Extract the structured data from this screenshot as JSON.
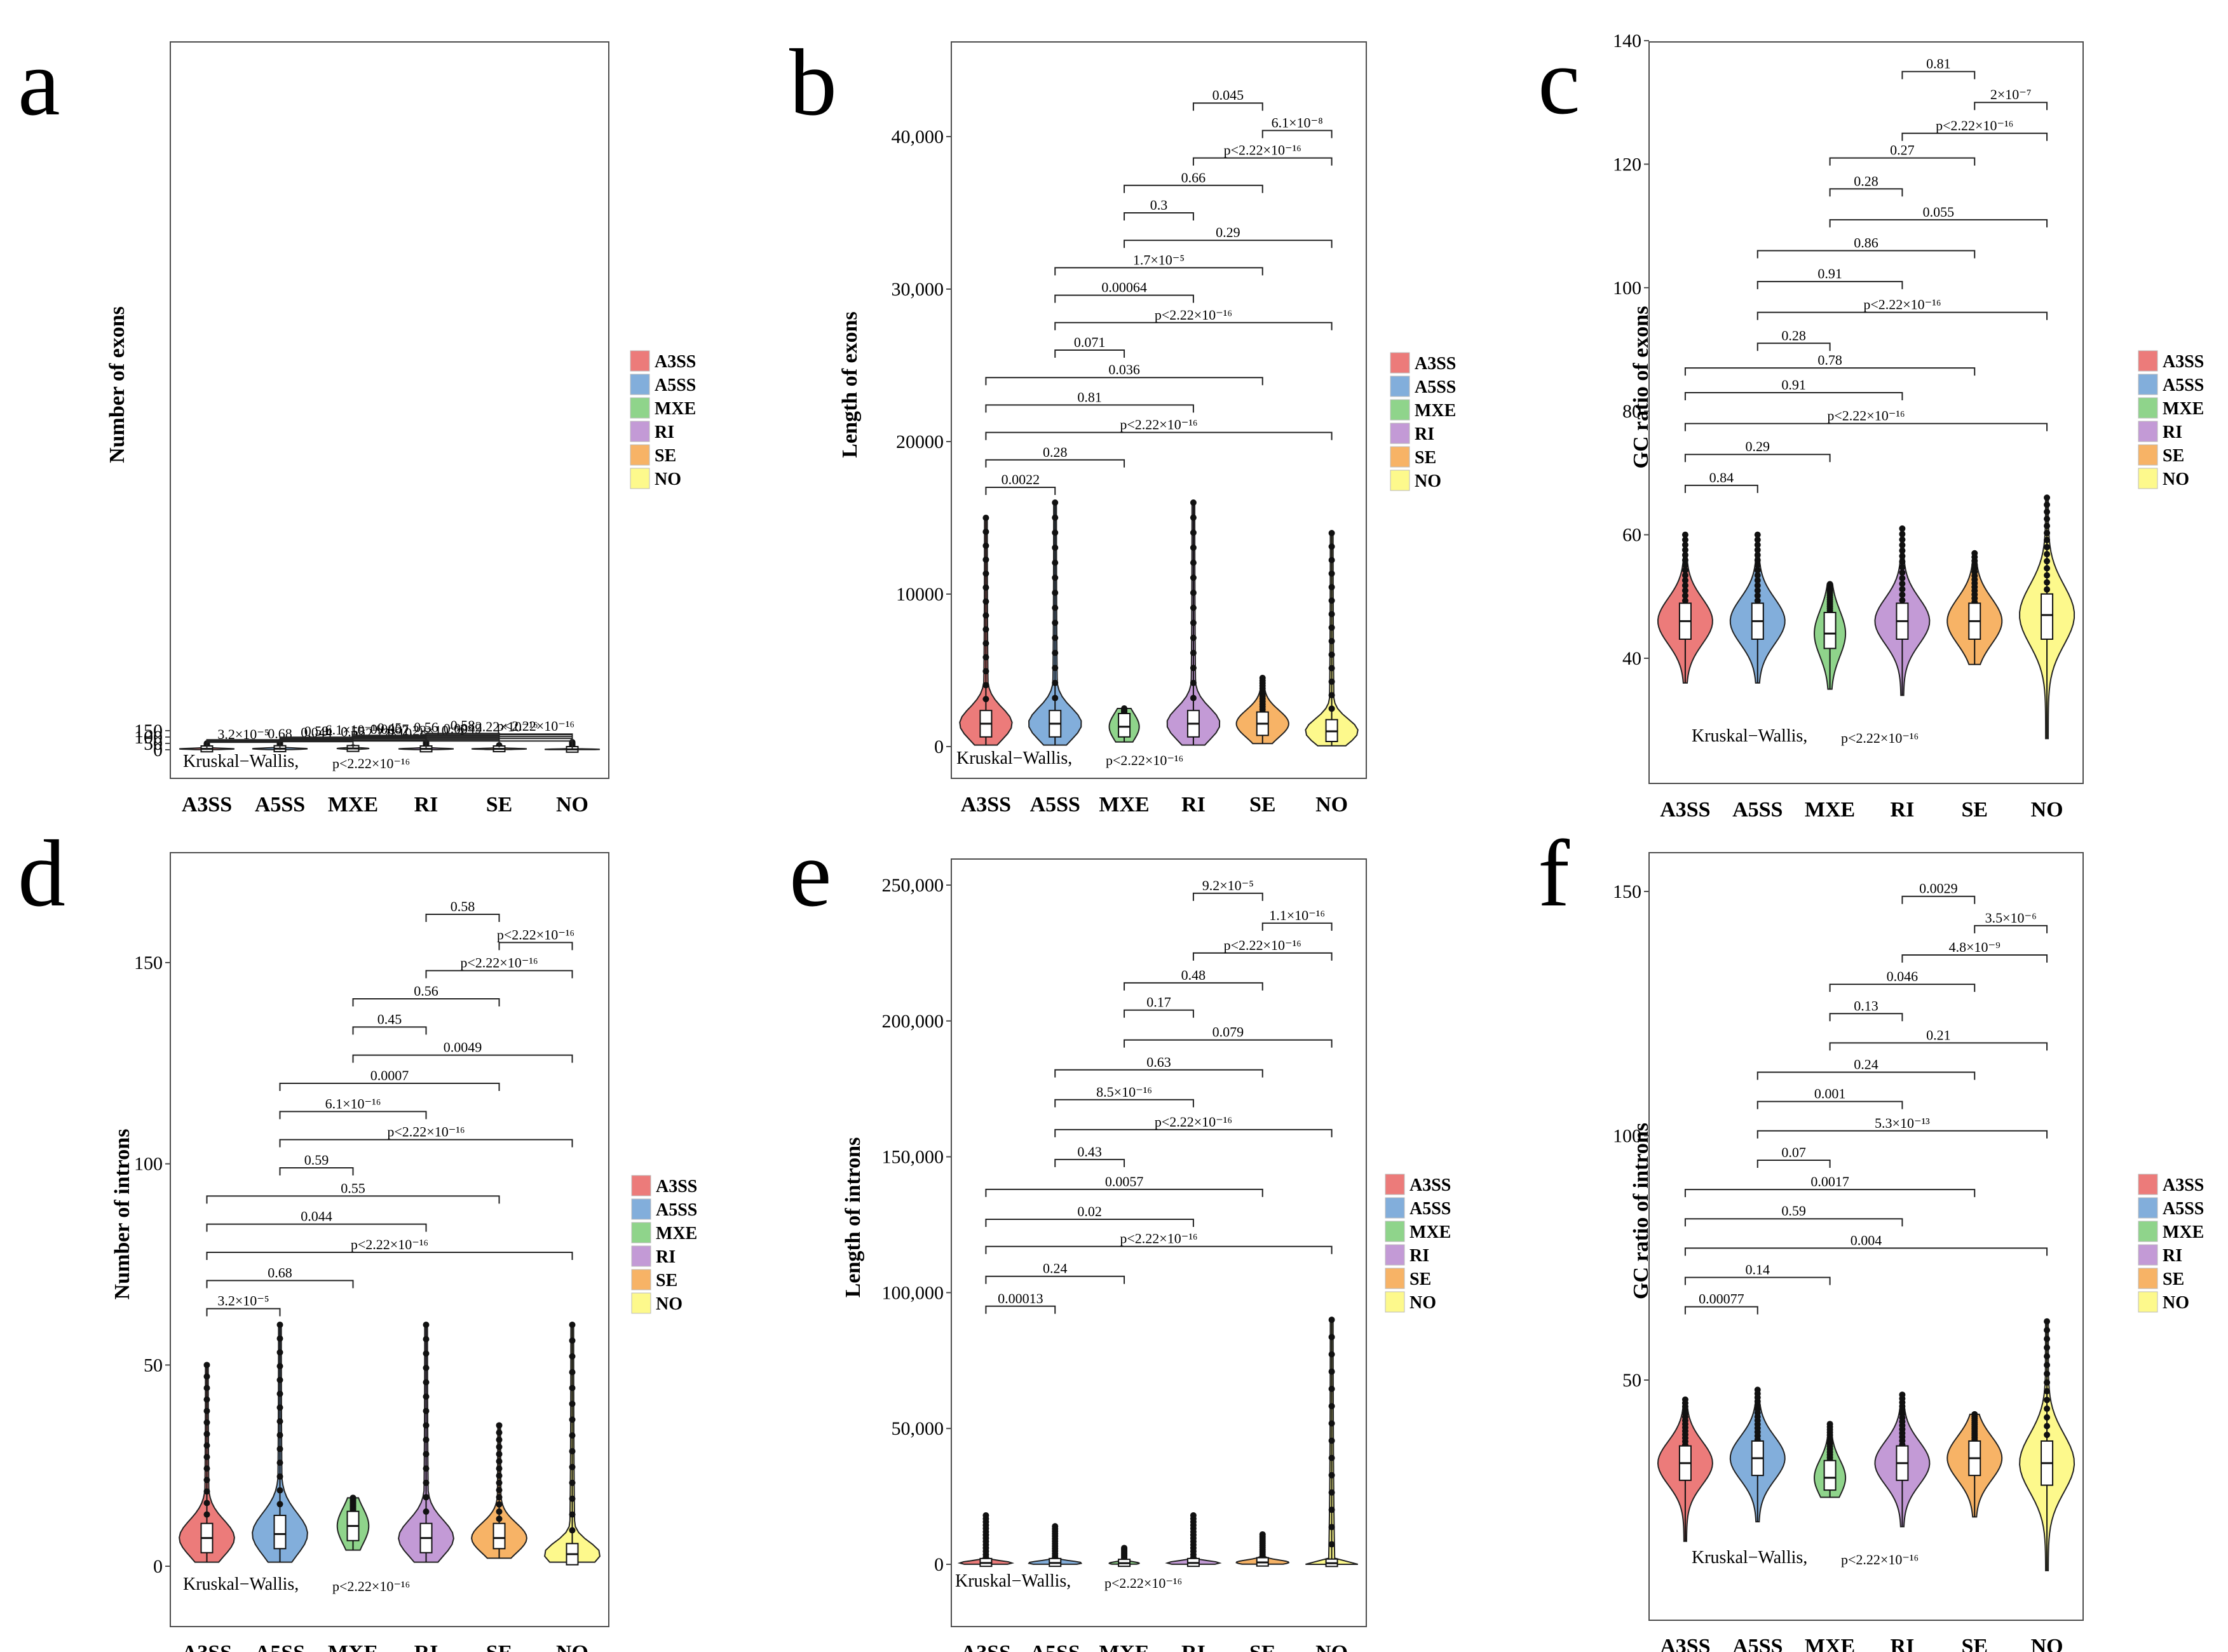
{
  "legend_colors": {
    "A3SS": "#ec7b7a",
    "A5SS": "#82aedb",
    "MXE": "#8fd48b",
    "RI": "#c39ad6",
    "SE": "#f7b366",
    "NO": "#fdf98c"
  },
  "chart_data": [
    {
      "type": "violin",
      "panel": "a",
      "ylabel": "Number of exons",
      "ylim": [
        0,
        160
      ],
      "yticks": [
        "0",
        "50",
        "100",
        "150"
      ],
      "ytick_values": [
        0,
        50,
        100,
        150
      ],
      "categories": [
        "A3SS",
        "A5SS",
        "MXE",
        "RI",
        "SE",
        "NO"
      ],
      "series": [
        {
          "name": "A3SS",
          "median": 7,
          "q1": 4,
          "q3": 10,
          "min": 1,
          "max": 50
        },
        {
          "name": "A5SS",
          "median": 8,
          "q1": 5,
          "q3": 12,
          "min": 1,
          "max": 60
        },
        {
          "name": "MXE",
          "median": 10,
          "q1": 7,
          "q3": 13,
          "min": 4,
          "max": 18
        },
        {
          "name": "RI",
          "median": 7,
          "q1": 4,
          "q3": 10,
          "min": 1,
          "max": 60
        },
        {
          "name": "SE",
          "median": 7,
          "q1": 5,
          "q3": 10,
          "min": 2,
          "max": 35
        },
        {
          "name": "NO",
          "median": 3,
          "q1": 1,
          "q3": 5,
          "min": 1,
          "max": 60
        }
      ],
      "comparisons": [
        {
          "a": 0,
          "b": 1,
          "label": "3.2×10⁻⁵",
          "level": 59
        },
        {
          "a": 0,
          "b": 2,
          "label": "0.68",
          "level": 64
        },
        {
          "a": 0,
          "b": 5,
          "label": "p<2.22×10⁻¹⁶",
          "level": 69
        },
        {
          "a": 0,
          "b": 3,
          "label": "0.044",
          "level": 74
        },
        {
          "a": 0,
          "b": 4,
          "label": "0.55",
          "level": 79
        },
        {
          "a": 1,
          "b": 2,
          "label": "0.59",
          "level": 84
        },
        {
          "a": 1,
          "b": 5,
          "label": "p<2.22×10⁻¹⁶",
          "level": 89
        },
        {
          "a": 1,
          "b": 3,
          "label": "6.1×10⁻¹⁶",
          "level": 94
        },
        {
          "a": 1,
          "b": 4,
          "label": "0.0007",
          "level": 99
        },
        {
          "a": 2,
          "b": 5,
          "label": "0.0049",
          "level": 104
        },
        {
          "a": 2,
          "b": 3,
          "label": "0.45",
          "level": 109
        },
        {
          "a": 2,
          "b": 4,
          "label": "0.56",
          "level": 114
        },
        {
          "a": 3,
          "b": 5,
          "label": "p<2.22×10⁻¹⁶",
          "level": 119
        },
        {
          "a": 4,
          "b": 5,
          "label": "p<2.22×10⁻¹⁶",
          "level": 124
        },
        {
          "a": 3,
          "b": 4,
          "label": "0.58",
          "level": 129
        }
      ],
      "test_label": "Kruskal−Wallis,",
      "test_p": "p<2.22×10⁻¹⁶"
    },
    {
      "type": "violin",
      "panel": "b",
      "ylabel": "Length of exons",
      "ylim": [
        0,
        46000
      ],
      "yticks": [
        "0",
        "10000",
        "20000",
        "30,000",
        "40,000"
      ],
      "ytick_values": [
        0,
        10000,
        20000,
        30000,
        40000
      ],
      "categories": [
        "A3SS",
        "A5SS",
        "MXE",
        "RI",
        "SE",
        "NO"
      ],
      "series": [
        {
          "name": "A3SS",
          "median": 1500,
          "q1": 800,
          "q3": 2200,
          "min": 100,
          "max": 15000
        },
        {
          "name": "A5SS",
          "median": 1500,
          "q1": 800,
          "q3": 2200,
          "min": 100,
          "max": 16000
        },
        {
          "name": "MXE",
          "median": 1300,
          "q1": 800,
          "q3": 2000,
          "min": 300,
          "max": 2500
        },
        {
          "name": "RI",
          "median": 1500,
          "q1": 800,
          "q3": 2200,
          "min": 100,
          "max": 16000
        },
        {
          "name": "SE",
          "median": 1500,
          "q1": 900,
          "q3": 2100,
          "min": 200,
          "max": 4500
        },
        {
          "name": "NO",
          "median": 1000,
          "q1": 500,
          "q3": 1600,
          "min": 50,
          "max": 14000
        }
      ],
      "comparisons": [
        {
          "a": 0,
          "b": 1,
          "label": "0.0022",
          "level": 17000
        },
        {
          "a": 0,
          "b": 2,
          "label": "0.28",
          "level": 18800
        },
        {
          "a": 0,
          "b": 5,
          "label": "p<2.22×10⁻¹⁶",
          "level": 20600
        },
        {
          "a": 0,
          "b": 3,
          "label": "0.81",
          "level": 22400
        },
        {
          "a": 0,
          "b": 4,
          "label": "0.036",
          "level": 24200
        },
        {
          "a": 1,
          "b": 2,
          "label": "0.071",
          "level": 26000
        },
        {
          "a": 1,
          "b": 5,
          "label": "p<2.22×10⁻¹⁶",
          "level": 27800
        },
        {
          "a": 1,
          "b": 3,
          "label": "0.00064",
          "level": 29600
        },
        {
          "a": 1,
          "b": 4,
          "label": "1.7×10⁻⁵",
          "level": 31400
        },
        {
          "a": 2,
          "b": 5,
          "label": "0.29",
          "level": 33200
        },
        {
          "a": 2,
          "b": 3,
          "label": "0.3",
          "level": 35000
        },
        {
          "a": 2,
          "b": 4,
          "label": "0.66",
          "level": 36800
        },
        {
          "a": 3,
          "b": 5,
          "label": "p<2.22×10⁻¹⁶",
          "level": 38600
        },
        {
          "a": 4,
          "b": 5,
          "label": "6.1×10⁻⁸",
          "level": 40400
        },
        {
          "a": 3,
          "b": 4,
          "label": "0.045",
          "level": 42200
        }
      ],
      "test_label": "Kruskal−Wallis,",
      "test_p": "p<2.22×10⁻¹⁶"
    },
    {
      "type": "violin",
      "panel": "c",
      "ylabel": "GC ratio of exons",
      "ylim": [
        22,
        140
      ],
      "yticks": [
        "40",
        "60",
        "80",
        "100",
        "120",
        "140"
      ],
      "ytick_values": [
        40,
        60,
        80,
        100,
        120,
        140
      ],
      "categories": [
        "A3SS",
        "A5SS",
        "MXE",
        "RI",
        "SE",
        "NO"
      ],
      "series": [
        {
          "name": "A3SS",
          "median": 46,
          "q1": 43.5,
          "q3": 48.5,
          "min": 36,
          "max": 60
        },
        {
          "name": "A5SS",
          "median": 46,
          "q1": 43.5,
          "q3": 48.5,
          "min": 36,
          "max": 60
        },
        {
          "name": "MXE",
          "median": 44,
          "q1": 42,
          "q3": 47,
          "min": 35,
          "max": 52
        },
        {
          "name": "RI",
          "median": 46,
          "q1": 43.5,
          "q3": 48.5,
          "min": 34,
          "max": 61
        },
        {
          "name": "SE",
          "median": 46,
          "q1": 43.5,
          "q3": 48.5,
          "min": 39,
          "max": 57
        },
        {
          "name": "NO",
          "median": 47,
          "q1": 43.5,
          "q3": 50,
          "min": 27,
          "max": 66
        }
      ],
      "comparisons": [
        {
          "a": 0,
          "b": 1,
          "label": "0.84",
          "level": 68
        },
        {
          "a": 0,
          "b": 2,
          "label": "0.29",
          "level": 73
        },
        {
          "a": 0,
          "b": 5,
          "label": "p<2.22×10⁻¹⁶",
          "level": 78
        },
        {
          "a": 0,
          "b": 3,
          "label": "0.91",
          "level": 83
        },
        {
          "a": 0,
          "b": 4,
          "label": "0.78",
          "level": 87
        },
        {
          "a": 1,
          "b": 2,
          "label": "0.28",
          "level": 91
        },
        {
          "a": 1,
          "b": 5,
          "label": "p<2.22×10⁻¹⁶",
          "level": 96
        },
        {
          "a": 1,
          "b": 3,
          "label": "0.91",
          "level": 101
        },
        {
          "a": 1,
          "b": 4,
          "label": "0.86",
          "level": 106
        },
        {
          "a": 2,
          "b": 5,
          "label": "0.055",
          "level": 111
        },
        {
          "a": 2,
          "b": 3,
          "label": "0.28",
          "level": 116
        },
        {
          "a": 2,
          "b": 4,
          "label": "0.27",
          "level": 121
        },
        {
          "a": 3,
          "b": 5,
          "label": "p<2.22×10⁻¹⁶",
          "level": 125
        },
        {
          "a": 4,
          "b": 5,
          "label": "2×10⁻⁷",
          "level": 130
        },
        {
          "a": 3,
          "b": 4,
          "label": "0.81",
          "level": 135
        }
      ],
      "test_label": "Kruskal−Wallis,",
      "test_p": "p<2.22×10⁻¹⁶"
    },
    {
      "type": "violin",
      "panel": "d",
      "ylabel": "Number of introns",
      "ylim": [
        0,
        160
      ],
      "yticks": [
        "0",
        "50",
        "100",
        "150"
      ],
      "ytick_values": [
        0,
        50,
        100,
        150
      ],
      "categories": [
        "A3SS",
        "A5SS",
        "MXE",
        "RI",
        "SE",
        "NO"
      ],
      "series": [
        {
          "name": "A3SS",
          "median": 7,
          "q1": 4,
          "q3": 10,
          "min": 1,
          "max": 50
        },
        {
          "name": "A5SS",
          "median": 8,
          "q1": 5,
          "q3": 12,
          "min": 1,
          "max": 60
        },
        {
          "name": "MXE",
          "median": 10,
          "q1": 7,
          "q3": 13,
          "min": 4,
          "max": 17
        },
        {
          "name": "RI",
          "median": 7,
          "q1": 4,
          "q3": 10,
          "min": 1,
          "max": 60
        },
        {
          "name": "SE",
          "median": 7,
          "q1": 5,
          "q3": 10,
          "min": 2,
          "max": 35
        },
        {
          "name": "NO",
          "median": 3,
          "q1": 1,
          "q3": 5,
          "min": 1,
          "max": 60
        }
      ],
      "comparisons": [
        {
          "a": 0,
          "b": 1,
          "label": "3.2×10⁻⁵",
          "level": 64
        },
        {
          "a": 0,
          "b": 2,
          "label": "0.68",
          "level": 71
        },
        {
          "a": 0,
          "b": 5,
          "label": "p<2.22×10⁻¹⁶",
          "level": 78
        },
        {
          "a": 0,
          "b": 3,
          "label": "0.044",
          "level": 85
        },
        {
          "a": 0,
          "b": 4,
          "label": "0.55",
          "level": 92
        },
        {
          "a": 1,
          "b": 2,
          "label": "0.59",
          "level": 99
        },
        {
          "a": 1,
          "b": 5,
          "label": "p<2.22×10⁻¹⁶",
          "level": 106
        },
        {
          "a": 1,
          "b": 3,
          "label": "6.1×10⁻¹⁶",
          "level": 113
        },
        {
          "a": 1,
          "b": 4,
          "label": "0.0007",
          "level": 120
        },
        {
          "a": 2,
          "b": 5,
          "label": "0.0049",
          "level": 127
        },
        {
          "a": 2,
          "b": 3,
          "label": "0.45",
          "level": 134
        },
        {
          "a": 2,
          "b": 4,
          "label": "0.56",
          "level": 141
        },
        {
          "a": 3,
          "b": 5,
          "label": "p<2.22×10⁻¹⁶",
          "level": 148
        },
        {
          "a": 4,
          "b": 5,
          "label": "p<2.22×10⁻¹⁶",
          "level": 155
        },
        {
          "a": 3,
          "b": 4,
          "label": "0.58",
          "level": 162
        }
      ],
      "test_label": "Kruskal−Wallis,",
      "test_p": "p<2.22×10⁻¹⁶"
    },
    {
      "type": "violin",
      "panel": "e",
      "ylabel": "Length of introns",
      "ylim": [
        -10000,
        262000
      ],
      "yticks": [
        "0",
        "50,000",
        "100,000",
        "150,000",
        "200,000",
        "250,000"
      ],
      "ytick_values": [
        0,
        50000,
        100000,
        150000,
        200000,
        250000
      ],
      "categories": [
        "A3SS",
        "A5SS",
        "MXE",
        "RI",
        "SE",
        "NO"
      ],
      "series": [
        {
          "name": "A3SS",
          "median": 500,
          "q1": 200,
          "q3": 1200,
          "min": 20,
          "max": 18000
        },
        {
          "name": "A5SS",
          "median": 500,
          "q1": 200,
          "q3": 1200,
          "min": 20,
          "max": 14000
        },
        {
          "name": "MXE",
          "median": 400,
          "q1": 200,
          "q3": 900,
          "min": 50,
          "max": 6000
        },
        {
          "name": "RI",
          "median": 500,
          "q1": 200,
          "q3": 1200,
          "min": 20,
          "max": 18000
        },
        {
          "name": "SE",
          "median": 700,
          "q1": 300,
          "q3": 1500,
          "min": 50,
          "max": 11000
        },
        {
          "name": "NO",
          "median": 400,
          "q1": 150,
          "q3": 1000,
          "min": 10,
          "max": 90000
        }
      ],
      "comparisons": [
        {
          "a": 0,
          "b": 1,
          "label": "0.00013",
          "level": 95000
        },
        {
          "a": 0,
          "b": 2,
          "label": "0.24",
          "level": 106000
        },
        {
          "a": 0,
          "b": 5,
          "label": "p<2.22×10⁻¹⁶",
          "level": 117000
        },
        {
          "a": 0,
          "b": 3,
          "label": "0.02",
          "level": 127000
        },
        {
          "a": 0,
          "b": 4,
          "label": "0.0057",
          "level": 138000
        },
        {
          "a": 1,
          "b": 2,
          "label": "0.43",
          "level": 149000
        },
        {
          "a": 1,
          "b": 5,
          "label": "p<2.22×10⁻¹⁶",
          "level": 160000
        },
        {
          "a": 1,
          "b": 3,
          "label": "8.5×10⁻¹⁶",
          "level": 171000
        },
        {
          "a": 1,
          "b": 4,
          "label": "0.63",
          "level": 182000
        },
        {
          "a": 2,
          "b": 5,
          "label": "0.079",
          "level": 193000
        },
        {
          "a": 2,
          "b": 3,
          "label": "0.17",
          "level": 204000
        },
        {
          "a": 2,
          "b": 4,
          "label": "0.48",
          "level": 214000
        },
        {
          "a": 3,
          "b": 5,
          "label": "p<2.22×10⁻¹⁶",
          "level": 225000
        },
        {
          "a": 4,
          "b": 5,
          "label": "1.1×10⁻¹⁶",
          "level": 236000
        },
        {
          "a": 3,
          "b": 4,
          "label": "9.2×10⁻⁵",
          "level": 247000
        }
      ],
      "test_label": "Kruskal−Wallis,",
      "test_p": "p<2.22×10⁻¹⁶"
    },
    {
      "type": "violin",
      "panel": "f",
      "ylabel": "GC ratio of introns",
      "ylim": [
        8,
        155
      ],
      "yticks": [
        "50",
        "100",
        "150"
      ],
      "ytick_values": [
        50,
        100,
        150
      ],
      "categories": [
        "A3SS",
        "A5SS",
        "MXE",
        "RI",
        "SE",
        "NO"
      ],
      "series": [
        {
          "name": "A3SS",
          "median": 33,
          "q1": 30,
          "q3": 36,
          "min": 17,
          "max": 46
        },
        {
          "name": "A5SS",
          "median": 34,
          "q1": 31,
          "q3": 37,
          "min": 21,
          "max": 48
        },
        {
          "name": "MXE",
          "median": 30,
          "q1": 28,
          "q3": 33,
          "min": 26,
          "max": 41
        },
        {
          "name": "RI",
          "median": 33,
          "q1": 30,
          "q3": 36,
          "min": 20,
          "max": 47
        },
        {
          "name": "SE",
          "median": 34,
          "q1": 31,
          "q3": 37,
          "min": 22,
          "max": 43
        },
        {
          "name": "NO",
          "median": 33,
          "q1": 29,
          "q3": 37,
          "min": 11,
          "max": 62
        }
      ],
      "comparisons": [
        {
          "a": 0,
          "b": 1,
          "label": "0.00077",
          "level": 65
        },
        {
          "a": 0,
          "b": 2,
          "label": "0.14",
          "level": 71
        },
        {
          "a": 0,
          "b": 5,
          "label": "0.004",
          "level": 77
        },
        {
          "a": 0,
          "b": 3,
          "label": "0.59",
          "level": 83
        },
        {
          "a": 0,
          "b": 4,
          "label": "0.0017",
          "level": 89
        },
        {
          "a": 1,
          "b": 2,
          "label": "0.07",
          "level": 95
        },
        {
          "a": 1,
          "b": 5,
          "label": "5.3×10⁻¹³",
          "level": 101
        },
        {
          "a": 1,
          "b": 3,
          "label": "0.001",
          "level": 107
        },
        {
          "a": 1,
          "b": 4,
          "label": "0.24",
          "level": 113
        },
        {
          "a": 2,
          "b": 5,
          "label": "0.21",
          "level": 119
        },
        {
          "a": 2,
          "b": 3,
          "label": "0.13",
          "level": 125
        },
        {
          "a": 2,
          "b": 4,
          "label": "0.046",
          "level": 131
        },
        {
          "a": 3,
          "b": 5,
          "label": "4.8×10⁻⁹",
          "level": 137
        },
        {
          "a": 4,
          "b": 5,
          "label": "3.5×10⁻⁶",
          "level": 143
        },
        {
          "a": 3,
          "b": 4,
          "label": "0.0029",
          "level": 149
        }
      ],
      "test_label": "Kruskal−Wallis,",
      "test_p": "p<2.22×10⁻¹⁶"
    }
  ]
}
